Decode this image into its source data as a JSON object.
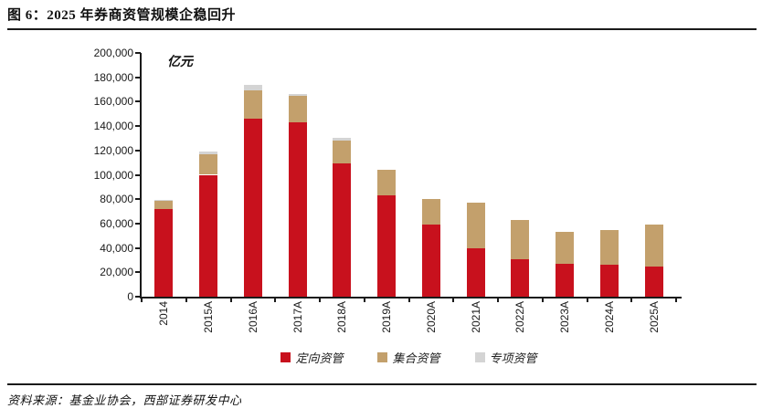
{
  "figure": {
    "title": "图 6：2025 年券商资管规模企稳回升",
    "source": "资料来源：基金业协会，西部证券研发中心"
  },
  "chart_data": {
    "type": "bar",
    "stacked": true,
    "title": "图 6：2025 年券商资管规模企稳回升",
    "unit_label": "亿元",
    "xlabel": "",
    "ylabel": "亿元",
    "ylim": [
      0,
      200000
    ],
    "ytick_step": 20000,
    "ytick_labels": [
      "0",
      "20,000",
      "40,000",
      "60,000",
      "80,000",
      "100,000",
      "120,000",
      "140,000",
      "160,000",
      "180,000",
      "200,000"
    ],
    "grid": false,
    "legend_position": "bottom",
    "categories": [
      "2014",
      "2015A",
      "2016A",
      "2017A",
      "2018A",
      "2019A",
      "2020A",
      "2021A",
      "2022A",
      "2023A",
      "2024A",
      "2025A"
    ],
    "series": [
      {
        "name": "定向资管",
        "color": "#C8111D",
        "values": [
          72000,
          100000,
          146000,
          143000,
          109000,
          83000,
          59000,
          40000,
          31000,
          27000,
          26000,
          25000
        ]
      },
      {
        "name": "集合资管",
        "color": "#C3A06C",
        "values": [
          6500,
          16500,
          23000,
          21500,
          19000,
          21000,
          21500,
          37000,
          32000,
          26500,
          28500,
          34000
        ]
      },
      {
        "name": "专项资管",
        "color": "#D4D4D4",
        "values": [
          1000,
          2500,
          4500,
          1500,
          2000,
          0,
          0,
          0,
          0,
          0,
          0,
          0
        ]
      }
    ],
    "totals": [
      79500,
      119000,
      173500,
      166000,
      130000,
      104000,
      80500,
      77000,
      63000,
      53500,
      54500,
      59000
    ]
  }
}
